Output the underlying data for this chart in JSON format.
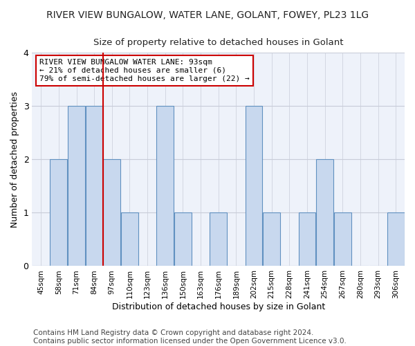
{
  "title": "RIVER VIEW BUNGALOW, WATER LANE, GOLANT, FOWEY, PL23 1LG",
  "subtitle": "Size of property relative to detached houses in Golant",
  "xlabel": "Distribution of detached houses by size in Golant",
  "ylabel": "Number of detached properties",
  "categories": [
    "45sqm",
    "58sqm",
    "71sqm",
    "84sqm",
    "97sqm",
    "110sqm",
    "123sqm",
    "136sqm",
    "150sqm",
    "163sqm",
    "176sqm",
    "189sqm",
    "202sqm",
    "215sqm",
    "228sqm",
    "241sqm",
    "254sqm",
    "267sqm",
    "280sqm",
    "293sqm",
    "306sqm"
  ],
  "values": [
    0,
    2,
    3,
    3,
    2,
    1,
    0,
    3,
    1,
    0,
    1,
    0,
    3,
    1,
    0,
    1,
    2,
    1,
    0,
    0,
    1
  ],
  "bar_color": "#c8d8ee",
  "bar_edge_color": "#6090c0",
  "vline_x_index": 4,
  "vline_color": "#cc0000",
  "annotation_text": "RIVER VIEW BUNGALOW WATER LANE: 93sqm\n← 21% of detached houses are smaller (6)\n79% of semi-detached houses are larger (22) →",
  "annotation_box_color": "#ffffff",
  "annotation_box_edge": "#cc0000",
  "ylim": [
    0,
    4
  ],
  "yticks": [
    0,
    1,
    2,
    3,
    4
  ],
  "footer_text": "Contains HM Land Registry data © Crown copyright and database right 2024.\nContains public sector information licensed under the Open Government Licence v3.0.",
  "fig_bg_color": "#ffffff",
  "plot_bg_color": "#eef2fa",
  "grid_color": "#c8ccd8",
  "title_fontsize": 10,
  "subtitle_fontsize": 9.5,
  "xlabel_fontsize": 9,
  "ylabel_fontsize": 9,
  "footer_fontsize": 7.5
}
